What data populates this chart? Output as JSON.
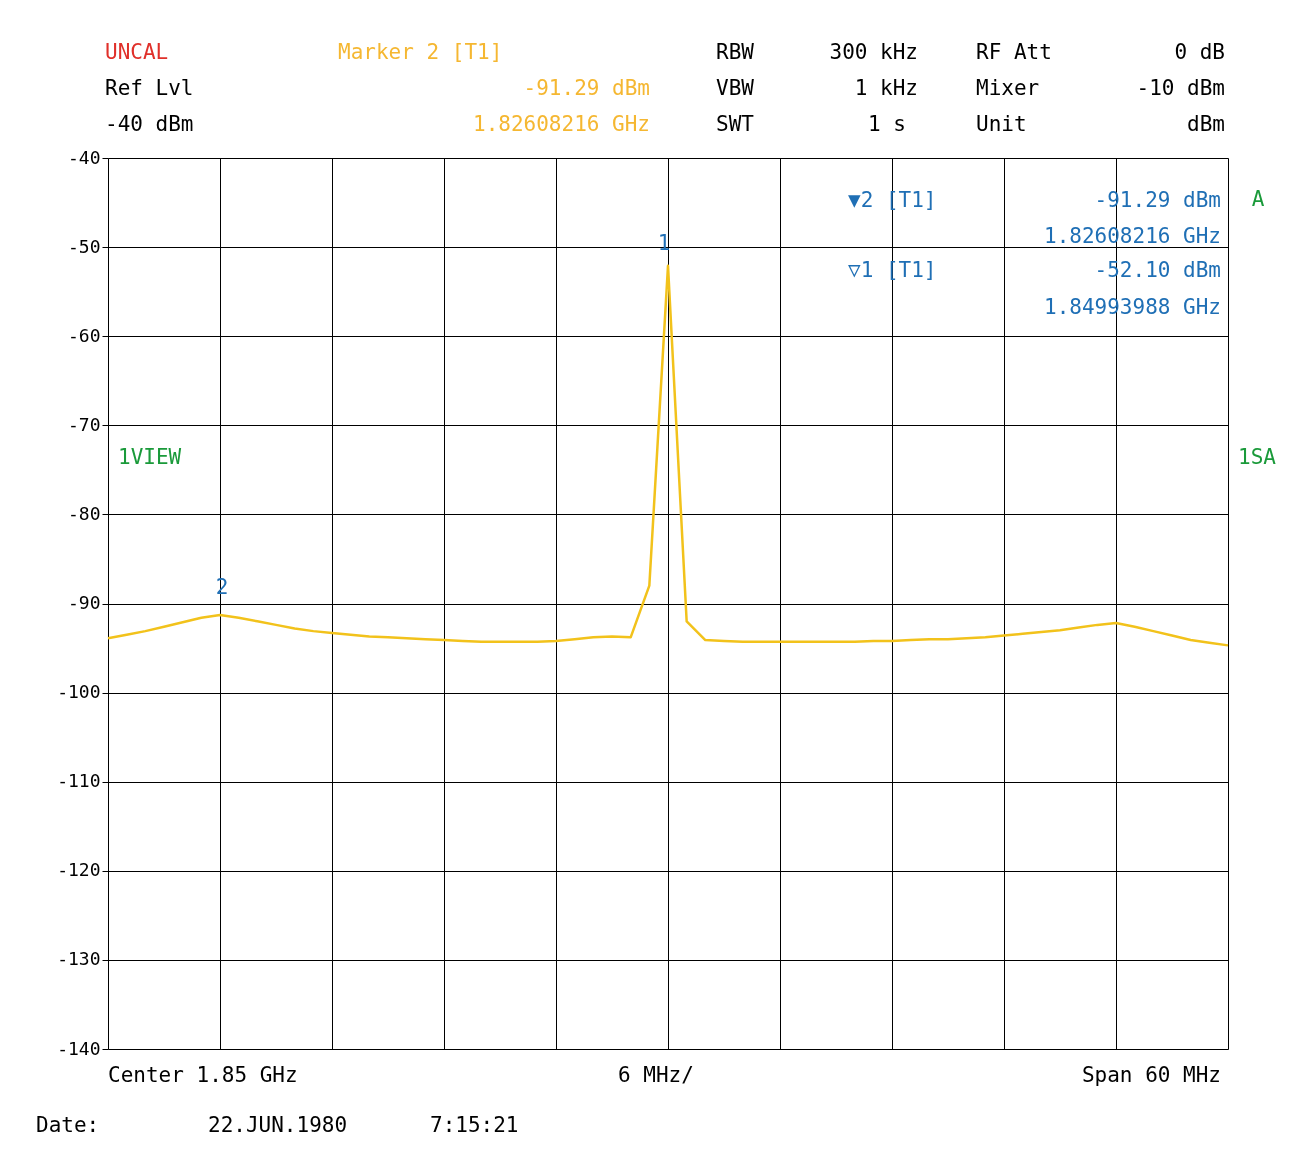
{
  "chart_data": {
    "type": "line",
    "categories": [
      null,
      null,
      null,
      null,
      null,
      null,
      null,
      null,
      null,
      null,
      null,
      null,
      null,
      null,
      null,
      null,
      null,
      null,
      null,
      null,
      null,
      null,
      null,
      null,
      null,
      null,
      null,
      null,
      null,
      null,
      null,
      null,
      null,
      null,
      null,
      null,
      null,
      null,
      null,
      null,
      null,
      null,
      null,
      null,
      null,
      null,
      null,
      null,
      null,
      null,
      null,
      null,
      null,
      null,
      null,
      null,
      null,
      null,
      null,
      null,
      null
    ],
    "series": [
      {
        "color": "#f2c21b",
        "values": [
          -93.9,
          -93.5,
          -93.1,
          -92.6,
          -92.1,
          -91.6,
          -91.3,
          -91.6,
          -92.0,
          -92.4,
          -92.8,
          -93.1,
          -93.3,
          -93.5,
          -93.7,
          -93.8,
          -93.9,
          -94.0,
          -94.1,
          -94.2,
          -94.3,
          -94.3,
          -94.3,
          -94.3,
          -94.2,
          -94.0,
          -93.8,
          -93.7,
          -93.8,
          -88.0,
          -52.1,
          -92.0,
          -94.1,
          -94.2,
          -94.3,
          -94.3,
          -94.3,
          -94.3,
          -94.3,
          -94.3,
          -94.3,
          -94.2,
          -94.2,
          -94.1,
          -94.0,
          -94.0,
          -93.9,
          -93.8,
          -93.6,
          -93.4,
          -93.2,
          -93.0,
          -92.7,
          -92.4,
          -92.2,
          -92.6,
          -93.1,
          -93.6,
          -94.1,
          -94.4,
          -94.7
        ]
      }
    ],
    "ylim": [
      -140,
      -40
    ],
    "yticks": [
      -140,
      -130,
      -120,
      -110,
      -100,
      -90,
      -80,
      -70,
      -60,
      -50,
      -40
    ],
    "grid": true,
    "marker": "none",
    "line_style": "solid",
    "annotations": [
      "UNCAL",
      "Ref Lvl",
      "-40 dBm",
      "Marker 2 [T1]",
      "-91.29 dBm",
      "1.82608216 GHz",
      "RBW",
      "300 kHz",
      "VBW",
      "1 kHz",
      "SWT",
      "1 s",
      "RF Att",
      "0 dB",
      "Mixer",
      "-10 dBm",
      "Unit",
      "dBm",
      "▼2 [T1]",
      "-91.29 dBm",
      "1.82608216 GHz",
      "▽1 [T1]",
      "-52.10 dBm",
      "1.84993988 GHz",
      "A",
      "1VIEW",
      "1SA",
      "Center 1.85 GHz",
      "6 MHz/",
      "Span 60 MHz",
      "Date:",
      "22.JUN.1980",
      "7:15:21",
      "2",
      "1"
    ]
  }
}
